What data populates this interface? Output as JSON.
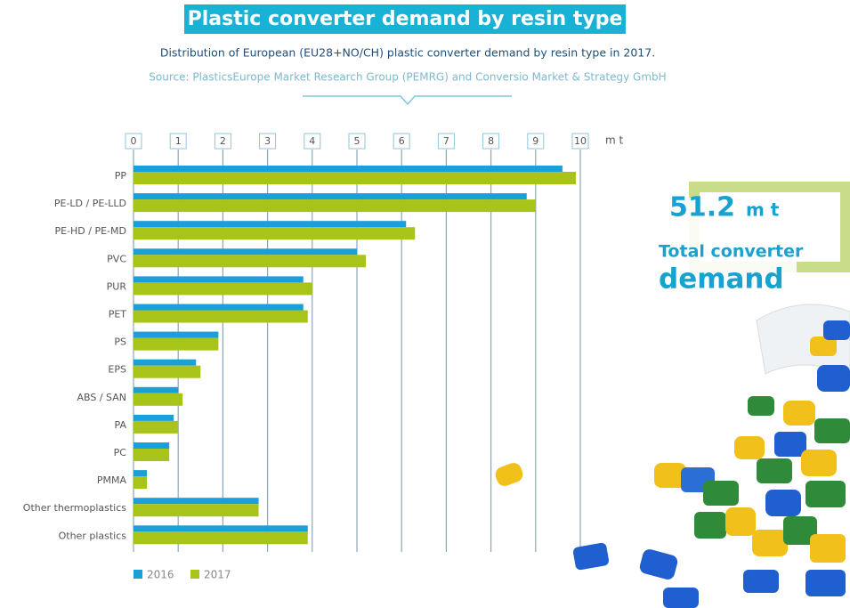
{
  "chart_data": {
    "type": "hbar",
    "title": "Plastic converter demand by resin type",
    "subtitle": "Distribution of European (EU28+NO/CH) plastic converter demand by resin type in 2017.",
    "source": "Source: PlasticsEurope Market Research Group (PEMRG) and Conversio Market & Strategy GmbH",
    "xlabel": "m t",
    "categories": [
      "PP",
      "PE-LD / PE-LLD",
      "PE-HD / PE-MD",
      "PVC",
      "PUR",
      "PET",
      "PS",
      "EPS",
      "ABS / SAN",
      "PA",
      "PC",
      "PMMA",
      "Other thermoplastics",
      "Other plastics"
    ],
    "series": [
      {
        "name": "2016",
        "color": "#1aa0d8",
        "values": [
          9.6,
          8.8,
          6.1,
          5.0,
          3.8,
          3.8,
          1.9,
          1.4,
          1.0,
          0.9,
          0.8,
          0.3,
          2.8,
          3.9
        ]
      },
      {
        "name": "2017",
        "color": "#a8c418",
        "values": [
          9.9,
          9.0,
          6.3,
          5.2,
          4.0,
          3.9,
          1.9,
          1.5,
          1.1,
          1.0,
          0.8,
          0.3,
          2.8,
          3.9
        ]
      }
    ],
    "xlim": [
      0,
      10
    ],
    "xticks": [
      0,
      1,
      2,
      3,
      4,
      5,
      6,
      7,
      8,
      9,
      10
    ],
    "grid": true,
    "legend": "bottom-left",
    "callout": {
      "value": "51.2",
      "unit": "m t",
      "line1": "Total converter",
      "line2": "demand"
    }
  }
}
